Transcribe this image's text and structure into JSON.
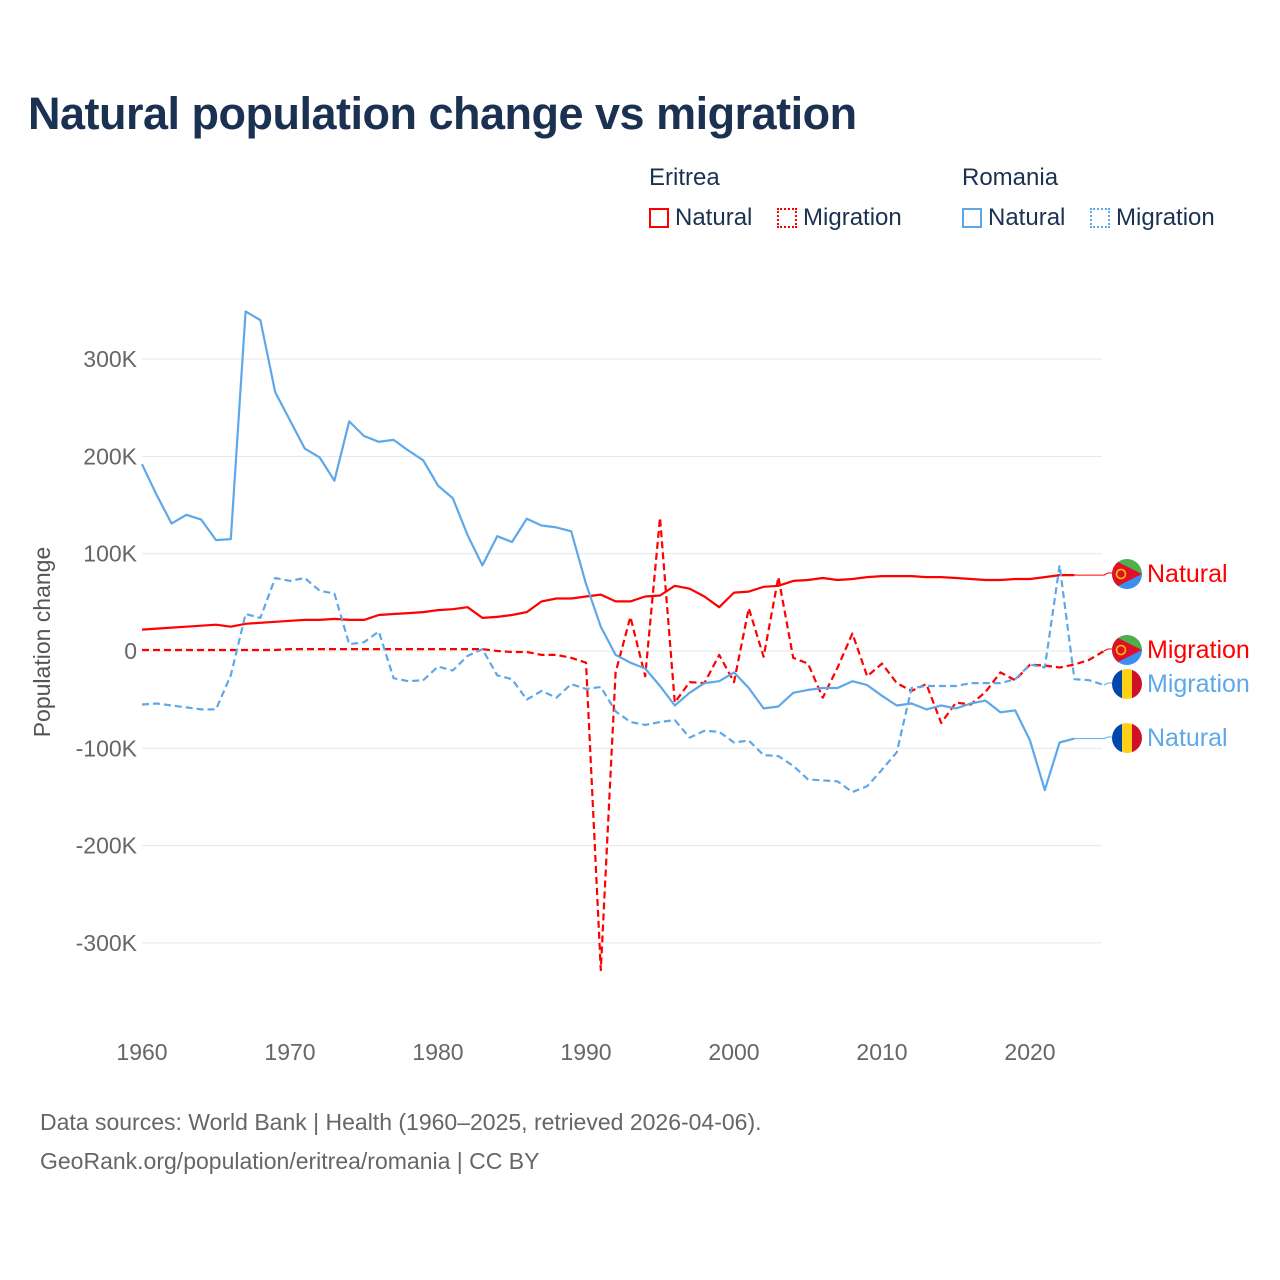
{
  "title": "Natural population change vs migration",
  "legend": {
    "groups": [
      {
        "country": "Eritrea",
        "color": "#ff0000",
        "items": [
          {
            "label": "Natural",
            "style": "solid"
          },
          {
            "label": "Migration",
            "style": "dotted"
          }
        ]
      },
      {
        "country": "Romania",
        "color": "#5ea8ea",
        "items": [
          {
            "label": "Natural",
            "style": "solid"
          },
          {
            "label": "Migration",
            "style": "dotted"
          }
        ]
      }
    ]
  },
  "footer": {
    "line1": "Data sources: World Bank | Health (1960–2025, retrieved 2026-04-06).",
    "line2": "GeoRank.org/population/eritrea/romania | CC BY"
  },
  "chart_data": {
    "type": "line",
    "title": "Natural population change vs migration",
    "xlabel": "",
    "ylabel": "Population change",
    "xlim": [
      1960,
      2025
    ],
    "ylim": [
      -350000,
      360000
    ],
    "x_ticks": [
      1960,
      1970,
      1980,
      1990,
      2000,
      2010,
      2020
    ],
    "y_ticks": [
      300000,
      200000,
      100000,
      0,
      -100000,
      -200000,
      -300000
    ],
    "y_tick_labels": [
      "300K",
      "200K",
      "100K",
      "0",
      "-100K",
      "-200K",
      "-300K"
    ],
    "grid": true,
    "legend_position": "top-right",
    "units": "thousands",
    "series": [
      {
        "name": "Eritrea Natural",
        "end_label": "Natural",
        "country": "Eritrea",
        "color": "#ff0000",
        "dashed": false,
        "start_year": 1960,
        "values": [
          22,
          23,
          24,
          25,
          26,
          27,
          25,
          28,
          29,
          30,
          31,
          32,
          32,
          33,
          32,
          32,
          37,
          38,
          39,
          40,
          42,
          43,
          45,
          34,
          35,
          37,
          40,
          51,
          54,
          54,
          56,
          58,
          51,
          51,
          56,
          57,
          67,
          64,
          56,
          45,
          60,
          61,
          66,
          67,
          72,
          73,
          75,
          73,
          74,
          76,
          77,
          77,
          77,
          76,
          76,
          75,
          74,
          73,
          73,
          74,
          74,
          76,
          78,
          78
        ]
      },
      {
        "name": "Eritrea Migration",
        "end_label": "Migration",
        "country": "Eritrea",
        "color": "#ff0000",
        "dashed": true,
        "start_year": 1960,
        "values": [
          1,
          1,
          1,
          1,
          1,
          1,
          1,
          1,
          1,
          1,
          2,
          2,
          2,
          2,
          2,
          2,
          2,
          2,
          2,
          2,
          2,
          2,
          2,
          2,
          0,
          -1,
          -1,
          -4,
          -4,
          -7,
          -12,
          -328,
          -22,
          35,
          -26,
          137,
          -53,
          -32,
          -33,
          -4,
          -32,
          44,
          -6,
          76,
          -7,
          -13,
          -48,
          -17,
          18,
          -26,
          -13,
          -33,
          -41,
          -34,
          -74,
          -53,
          -55,
          -42,
          -22,
          -30,
          -14,
          -15,
          -17,
          -14,
          -9,
          0
        ]
      },
      {
        "name": "Romania Migration",
        "end_label": "Migration",
        "country": "Romania",
        "color": "#5ea8ea",
        "dashed": true,
        "start_year": 1960,
        "values": [
          -55,
          -54,
          -56,
          -58,
          -60,
          -60,
          -25,
          38,
          34,
          75,
          72,
          75,
          62,
          59,
          7,
          9,
          20,
          -28,
          -31,
          -30,
          -16,
          -20,
          -5,
          2,
          -25,
          -29,
          -50,
          -41,
          -48,
          -34,
          -39,
          -37,
          -62,
          -73,
          -76,
          -73,
          -71,
          -89,
          -82,
          -83,
          -94,
          -92,
          -107,
          -108,
          -118,
          -132,
          -133,
          -134,
          -145,
          -139,
          -122,
          -104,
          -38,
          -36,
          -36,
          -36,
          -33,
          -33,
          -33,
          -29,
          -14,
          -17,
          88,
          -29,
          -30,
          -35
        ]
      },
      {
        "name": "Romania Natural",
        "end_label": "Natural",
        "country": "Romania",
        "color": "#5ea8ea",
        "dashed": false,
        "start_year": 1960,
        "values": [
          192,
          160,
          131,
          140,
          135,
          114,
          115,
          349,
          340,
          266,
          237,
          208,
          199,
          175,
          236,
          221,
          215,
          217,
          206,
          196,
          170,
          157,
          119,
          88,
          118,
          112,
          136,
          129,
          127,
          123,
          69,
          25,
          -4,
          -12,
          -18,
          -36,
          -56,
          -43,
          -33,
          -31,
          -22,
          -38,
          -59,
          -57,
          -43,
          -40,
          -38,
          -38,
          -31,
          -35,
          -46,
          -56,
          -54,
          -60,
          -56,
          -59,
          -54,
          -51,
          -63,
          -61,
          -92,
          -143,
          -94,
          -90
        ]
      }
    ]
  }
}
